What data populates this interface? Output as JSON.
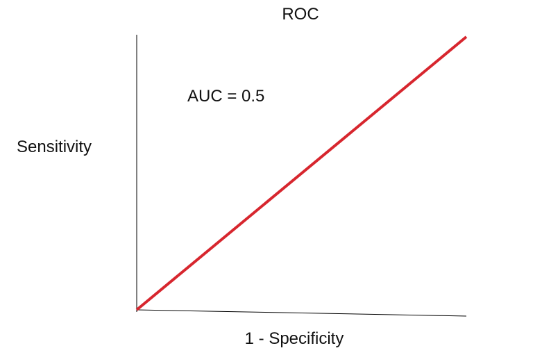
{
  "chart_data": {
    "type": "line",
    "title": "ROC",
    "xlabel": "1 - Specificity",
    "ylabel": "Sensitivity",
    "xlim": [
      0,
      1
    ],
    "ylim": [
      0,
      1
    ],
    "grid": false,
    "series": [
      {
        "x": [
          0,
          1
        ],
        "y": [
          0,
          1
        ],
        "color": "#d7262e"
      }
    ],
    "annotations": [
      {
        "text": "AUC = 0.5"
      }
    ],
    "axis_color": "#000000"
  }
}
